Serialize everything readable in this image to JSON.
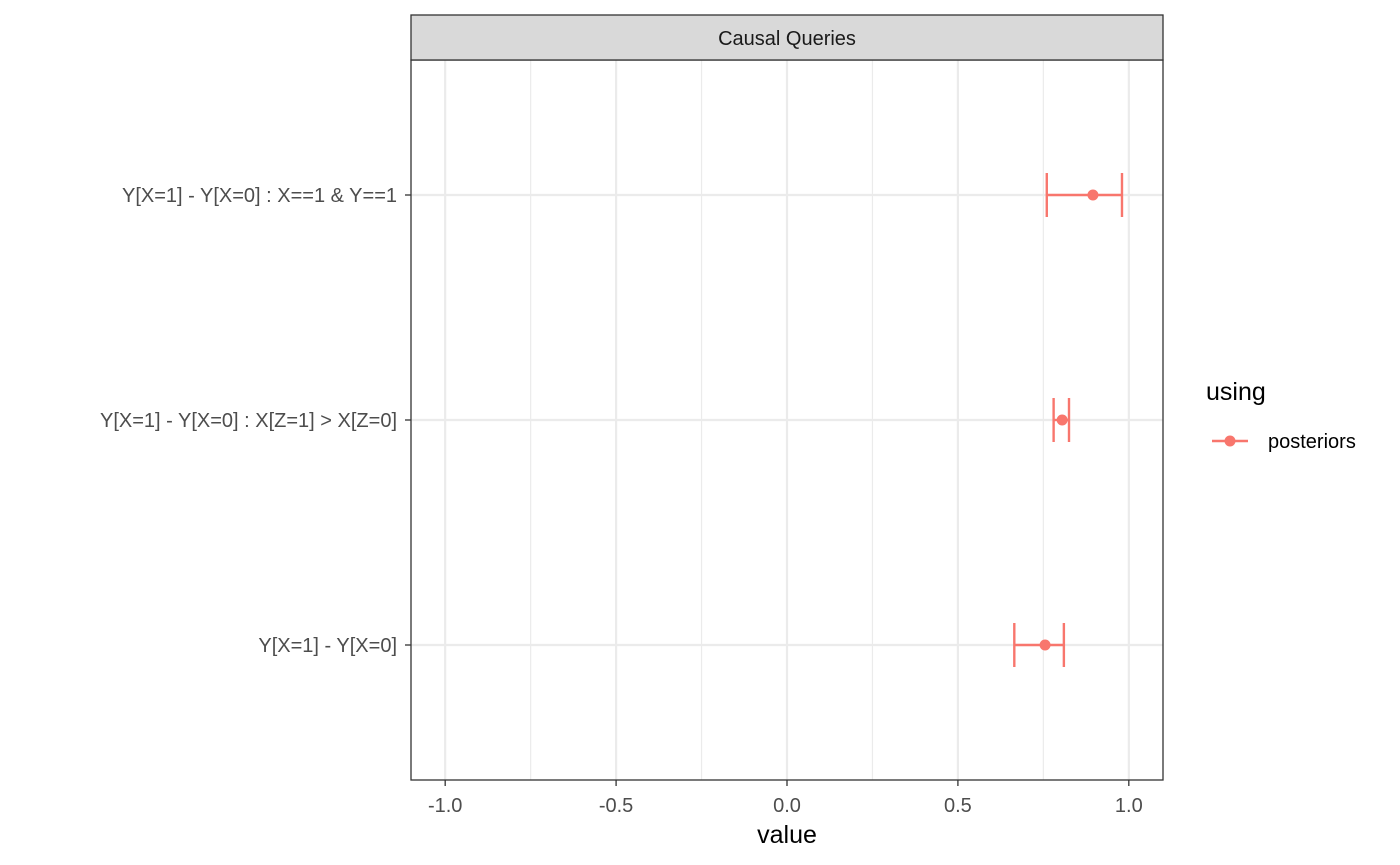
{
  "chart_data": {
    "type": "errorbar",
    "panel_title": "Causal Queries",
    "xlabel": "value",
    "ylabel": "",
    "xlim": [
      -1.1,
      1.1
    ],
    "x_ticks": [
      -1.0,
      -0.5,
      0.0,
      0.5,
      1.0
    ],
    "x_tick_labels": [
      "-1.0",
      "-0.5",
      "0.0",
      "0.5",
      "1.0"
    ],
    "categories": [
      "Y[X=1] - Y[X=0] : X==1 & Y==1",
      "Y[X=1] - Y[X=0] : X[Z=1] > X[Z=0]",
      "Y[X=1] - Y[X=0]"
    ],
    "series": [
      {
        "name": "posteriors",
        "color": "#f8766d",
        "points": [
          {
            "category": "Y[X=1] - Y[X=0] : X==1 & Y==1",
            "estimate": 0.895,
            "lower": 0.76,
            "upper": 0.98
          },
          {
            "category": "Y[X=1] - Y[X=0] : X[Z=1] > X[Z=0]",
            "estimate": 0.805,
            "lower": 0.78,
            "upper": 0.825
          },
          {
            "category": "Y[X=1] - Y[X=0]",
            "estimate": 0.755,
            "lower": 0.665,
            "upper": 0.81
          }
        ]
      }
    ],
    "legend": {
      "title": "using",
      "position": "right"
    },
    "grid": true
  }
}
